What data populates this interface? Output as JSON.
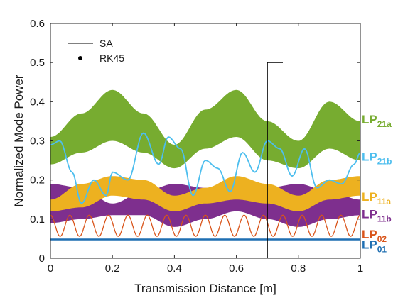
{
  "chart_data": {
    "type": "line",
    "xlabel": "Transmission Distance [m]",
    "ylabel": "Normalized Mode Power",
    "xlim": [
      0,
      1
    ],
    "ylim": [
      0,
      0.6
    ],
    "xticks": [
      "0",
      "0.2",
      "0.4",
      "0.6",
      "0.8",
      "1"
    ],
    "yticks": [
      "0",
      "0.1",
      "0.2",
      "0.3",
      "0.4",
      "0.5",
      "0.6"
    ],
    "legend": {
      "position": "top-left",
      "entries": [
        {
          "label": "SA",
          "marker": "line"
        },
        {
          "label": "RK45",
          "marker": "dot"
        }
      ]
    },
    "annotations": [
      {
        "type": "vertical-line",
        "x": 0.7,
        "y_top": 0.5,
        "x_end": 0.75
      }
    ],
    "series": [
      {
        "name": "LP01",
        "main": "LP",
        "sub": "01",
        "color": "#1f6fb2",
        "style": "line",
        "x": [
          0,
          0.5,
          1
        ],
        "y": [
          0.048,
          0.048,
          0.048
        ]
      },
      {
        "name": "LP02",
        "main": "LP",
        "sub": "02",
        "color": "#d9541a",
        "style": "oscillation",
        "center": 0.083,
        "amplitude": 0.027,
        "period": 0.0625
      },
      {
        "name": "LP11b",
        "main": "LP",
        "sub": "11b",
        "color": "#7e2f8e",
        "style": "band",
        "x": [
          0,
          0.1,
          0.2,
          0.3,
          0.4,
          0.5,
          0.6,
          0.7,
          0.8,
          0.9,
          1.0
        ],
        "upper": [
          0.19,
          0.18,
          0.14,
          0.17,
          0.19,
          0.18,
          0.16,
          0.18,
          0.19,
          0.17,
          0.15
        ],
        "lower": [
          0.09,
          0.1,
          0.11,
          0.11,
          0.08,
          0.1,
          0.12,
          0.1,
          0.08,
          0.1,
          0.11
        ]
      },
      {
        "name": "LP11a",
        "main": "LP",
        "sub": "11a",
        "color": "#edb120",
        "style": "band",
        "x": [
          0,
          0.1,
          0.2,
          0.3,
          0.4,
          0.5,
          0.6,
          0.7,
          0.8,
          0.9,
          1.0
        ],
        "upper": [
          0.15,
          0.19,
          0.21,
          0.2,
          0.16,
          0.18,
          0.21,
          0.19,
          0.16,
          0.2,
          0.21
        ],
        "lower": [
          0.12,
          0.13,
          0.16,
          0.15,
          0.12,
          0.14,
          0.15,
          0.14,
          0.12,
          0.15,
          0.16
        ]
      },
      {
        "name": "LP21b",
        "main": "LP",
        "sub": "21b",
        "color": "#4dbeee",
        "style": "line",
        "x": [
          0,
          0.03,
          0.07,
          0.1,
          0.14,
          0.18,
          0.2,
          0.25,
          0.3,
          0.35,
          0.38,
          0.42,
          0.46,
          0.5,
          0.54,
          0.58,
          0.62,
          0.66,
          0.7,
          0.74,
          0.78,
          0.82,
          0.86,
          0.9,
          0.94,
          0.98,
          1.0
        ],
        "y": [
          0.29,
          0.3,
          0.22,
          0.14,
          0.2,
          0.16,
          0.22,
          0.2,
          0.32,
          0.24,
          0.31,
          0.28,
          0.16,
          0.25,
          0.23,
          0.17,
          0.27,
          0.22,
          0.3,
          0.28,
          0.21,
          0.28,
          0.18,
          0.2,
          0.19,
          0.24,
          0.27
        ]
      },
      {
        "name": "LP21a",
        "main": "LP",
        "sub": "21a",
        "color": "#77ac30",
        "style": "band",
        "x": [
          0,
          0.1,
          0.2,
          0.3,
          0.4,
          0.5,
          0.6,
          0.7,
          0.8,
          0.9,
          1.0
        ],
        "upper": [
          0.31,
          0.37,
          0.43,
          0.37,
          0.29,
          0.38,
          0.43,
          0.35,
          0.3,
          0.4,
          0.35
        ],
        "lower": [
          0.24,
          0.27,
          0.3,
          0.27,
          0.23,
          0.28,
          0.31,
          0.25,
          0.23,
          0.28,
          0.25
        ]
      }
    ]
  }
}
